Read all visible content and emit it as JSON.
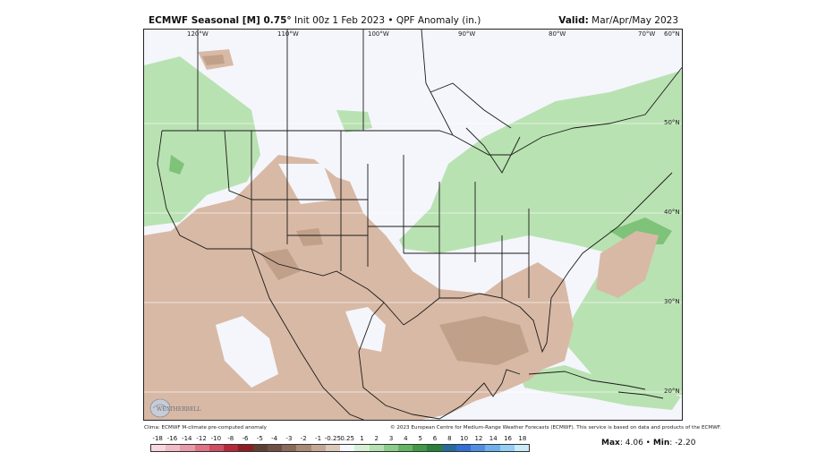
{
  "header": {
    "model": "ECMWF Seasonal [M] 0.75",
    "degree": "°",
    "init": " Init 00z 1 Feb 2023 • QPF Anomaly (in.)",
    "valid_label": "Valid:",
    "valid_value": " Mar/Apr/May 2023"
  },
  "lon_labels": [
    "120°W",
    "110°W",
    "100°W",
    "90°W",
    "80°W",
    "70°W"
  ],
  "lat_labels": [
    "60°N",
    "50°N",
    "40°N",
    "30°N",
    "20°N"
  ],
  "logo": {
    "text": "WEATHERBELL"
  },
  "credits": {
    "left": "Clima: ECMWF M-climate pre-computed anomaly",
    "right": "© 2023 European Centre for Medium-Range Weather Forecasts (ECMWF). This service is based on data and products of the ECMWF."
  },
  "colorbar": {
    "labels": [
      "-18",
      "-16",
      "-14",
      "-12",
      "-10",
      "-8",
      "-6",
      "-5",
      "-4",
      "-3",
      "-2",
      "-1",
      "-0.25",
      "0.25",
      "1",
      "2",
      "3",
      "4",
      "5",
      "6",
      "8",
      "10",
      "12",
      "14",
      "16",
      "18"
    ],
    "colors": [
      "#f7d7e0",
      "#f1bcc8",
      "#e89aa8",
      "#dd7385",
      "#cf4d60",
      "#b8283d",
      "#8c1d22",
      "#5c4036",
      "#6e5143",
      "#8a6a58",
      "#a98a76",
      "#c5a894",
      "#dcc8b8",
      "#f5f7fc",
      "#d7efd4",
      "#b4e1b0",
      "#8dcd8a",
      "#64b563",
      "#3f9a45",
      "#2b7f3a",
      "#256c99",
      "#2f6fd6",
      "#4f8fe3",
      "#6db1ec",
      "#93cff2",
      "#c8ebf8"
    ]
  },
  "stats": {
    "max_label": "Max",
    "max_value": "4.06",
    "sep": " • ",
    "min_label": "Min",
    "min_value": "-2.20"
  },
  "colors": {
    "dry": "#d8b9a5",
    "dry_dark": "#c1a08a",
    "wet": "#b9e2b2",
    "wet_dark": "#7fc27a",
    "neutral": "#f4f6fc"
  }
}
